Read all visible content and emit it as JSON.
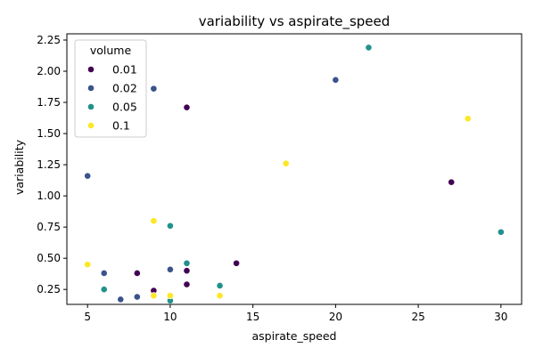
{
  "chart_data": {
    "type": "scatter",
    "title": "variability vs aspirate_speed",
    "xlabel": "aspirate_speed",
    "ylabel": "variability",
    "xlim": [
      3.75,
      31.25
    ],
    "ylim": [
      0.13,
      2.3
    ],
    "xticks": [
      5,
      10,
      15,
      20,
      25,
      30
    ],
    "xtick_labels": [
      "5",
      "10",
      "15",
      "20",
      "25",
      "30"
    ],
    "yticks": [
      0.25,
      0.5,
      0.75,
      1.0,
      1.25,
      1.5,
      1.75,
      2.0,
      2.25
    ],
    "ytick_labels": [
      "0.25",
      "0.50",
      "0.75",
      "1.00",
      "1.25",
      "1.50",
      "1.75",
      "2.00",
      "2.25"
    ],
    "grid": false,
    "legend": {
      "title": "volume",
      "placement": "upper-left"
    },
    "series": [
      {
        "name": "0.01",
        "color": "#440154",
        "points": [
          [
            11,
            1.71
          ],
          [
            27,
            1.11
          ],
          [
            14,
            0.46
          ],
          [
            8,
            0.38
          ],
          [
            11,
            0.4
          ],
          [
            11,
            0.29
          ],
          [
            9,
            0.24
          ]
        ]
      },
      {
        "name": "0.02",
        "color": "#3b528b",
        "points": [
          [
            9,
            1.86
          ],
          [
            20,
            1.93
          ],
          [
            5,
            1.16
          ],
          [
            6,
            0.38
          ],
          [
            10,
            0.41
          ],
          [
            8,
            0.19
          ],
          [
            7,
            0.17
          ]
        ]
      },
      {
        "name": "0.05",
        "color": "#21918c",
        "points": [
          [
            22,
            2.19
          ],
          [
            30,
            0.71
          ],
          [
            10,
            0.76
          ],
          [
            11,
            0.46
          ],
          [
            13,
            0.28
          ],
          [
            6,
            0.25
          ],
          [
            10,
            0.16
          ]
        ]
      },
      {
        "name": "0.1",
        "color": "#fde725",
        "points": [
          [
            28,
            1.62
          ],
          [
            17,
            1.26
          ],
          [
            9,
            0.8
          ],
          [
            5,
            0.45
          ],
          [
            9,
            0.2
          ],
          [
            10,
            0.2
          ],
          [
            13,
            0.2
          ]
        ]
      }
    ]
  }
}
